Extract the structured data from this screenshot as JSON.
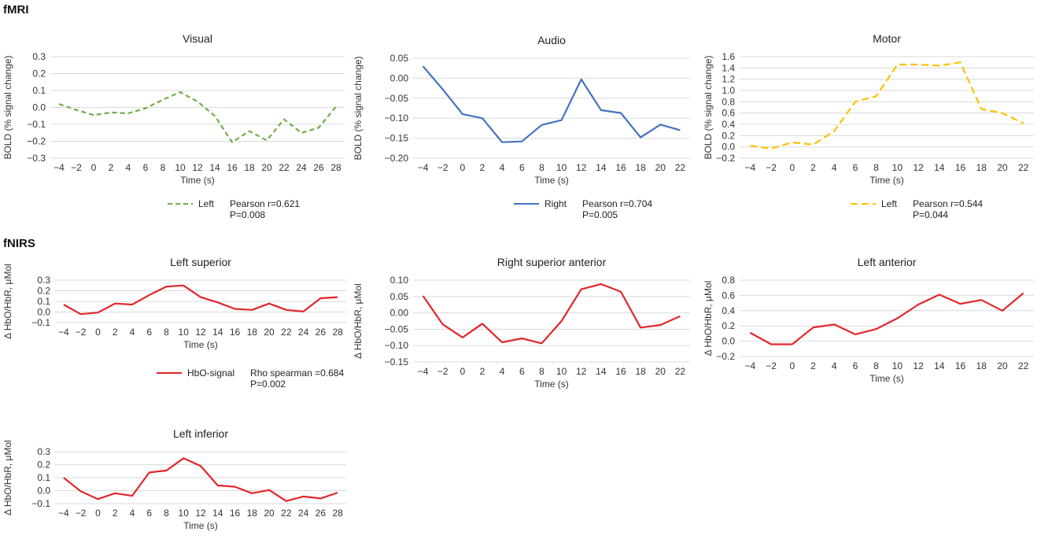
{
  "sections": {
    "fmri": "fMRI",
    "fnirs": "fNIRS"
  },
  "colors": {
    "green": "#70ad47",
    "blue": "#4472c4",
    "yellow": "#ffc000",
    "red": "#e3262c",
    "grid": "#d9d9d9",
    "axis": "#bfbfbf"
  },
  "legends": {
    "visual": {
      "label": "Left",
      "stat1": "Pearson r=0.621",
      "stat2": "P=0.008"
    },
    "audio": {
      "label": "Right",
      "stat1": "Pearson r=0.704",
      "stat2": "P=0.005"
    },
    "motor": {
      "label": "Left",
      "stat1": "Pearson r=0.544",
      "stat2": "P=0.044"
    },
    "fnirs": {
      "label": "HbO-signal",
      "stat1": "Rho spearman =0.684",
      "stat2": "P=0.002"
    }
  },
  "chart_data": [
    {
      "type": "line",
      "title": "Visual",
      "xlabel": "Time (s)",
      "ylabel": "BOLD (% signal change)",
      "x": [
        -4,
        -2,
        0,
        2,
        4,
        6,
        8,
        10,
        12,
        14,
        16,
        18,
        20,
        22,
        24,
        26,
        28
      ],
      "xticks": [
        "−4",
        "−2",
        "0",
        "2",
        "4",
        "6",
        "8",
        "10",
        "12",
        "14",
        "16",
        "18",
        "20",
        "22",
        "24",
        "26",
        "28"
      ],
      "ylim": [
        -0.3,
        0.3
      ],
      "yticks": [
        "−0.3",
        "−0.2",
        "−0.1",
        "0.0",
        "0.1",
        "0.2",
        "0.3"
      ],
      "ystep": 0.1,
      "grid": true,
      "series": [
        {
          "name": "Left",
          "color": "#70ad47",
          "dash": "6,4",
          "values": [
            0.02,
            -0.015,
            -0.045,
            -0.03,
            -0.035,
            -0.005,
            0.045,
            0.09,
            0.035,
            -0.05,
            -0.205,
            -0.14,
            -0.195,
            -0.07,
            -0.15,
            -0.12,
            0.005
          ]
        }
      ]
    },
    {
      "type": "line",
      "title": "Audio",
      "xlabel": "Time (s)",
      "ylabel": "BOLD (% signal change)",
      "x": [
        -4,
        -2,
        0,
        2,
        4,
        6,
        8,
        10,
        12,
        14,
        16,
        18,
        20,
        22
      ],
      "xticks": [
        "−4",
        "−2",
        "0",
        "2",
        "4",
        "6",
        "8",
        "10",
        "12",
        "14",
        "16",
        "18",
        "20",
        "22"
      ],
      "ylim": [
        -0.2,
        0.05
      ],
      "yticks": [
        "−0.20",
        "−0.15",
        "−0.10",
        "−0.05",
        "0.00",
        "0.05"
      ],
      "ystep": 0.05,
      "grid": true,
      "series": [
        {
          "name": "Right",
          "color": "#4472c4",
          "dash": "",
          "values": [
            0.03,
            -0.028,
            -0.09,
            -0.1,
            -0.16,
            -0.158,
            -0.117,
            -0.105,
            -0.003,
            -0.08,
            -0.087,
            -0.148,
            -0.116,
            -0.13
          ]
        }
      ]
    },
    {
      "type": "line",
      "title": "Motor",
      "xlabel": "Time (s)",
      "ylabel": "BOLD (% signal change)",
      "x": [
        -4,
        -2,
        0,
        2,
        4,
        6,
        8,
        10,
        12,
        14,
        16,
        18,
        20,
        22
      ],
      "xticks": [
        "−4",
        "−2",
        "0",
        "2",
        "4",
        "6",
        "8",
        "10",
        "12",
        "14",
        "16",
        "18",
        "20",
        "22"
      ],
      "ylim": [
        -0.2,
        1.6
      ],
      "yticks": [
        "−0.2",
        "0.0",
        "0.2",
        "0.4",
        "0.6",
        "0.8",
        "1.0",
        "1.2",
        "1.4",
        "1.6"
      ],
      "ystep": 0.2,
      "grid": true,
      "series": [
        {
          "name": "Left",
          "color": "#ffc000",
          "dash": "9,5",
          "values": [
            0.02,
            -0.03,
            0.08,
            0.04,
            0.28,
            0.8,
            0.9,
            1.46,
            1.46,
            1.44,
            1.5,
            0.67,
            0.6,
            0.42
          ]
        }
      ]
    },
    {
      "type": "line",
      "title": "Left superior",
      "xlabel": "Time (s)",
      "ylabel": "Δ HbO/HbR, μMol",
      "x": [
        -4,
        -2,
        0,
        2,
        4,
        6,
        8,
        10,
        12,
        14,
        16,
        18,
        20,
        22,
        24,
        26,
        28
      ],
      "xticks": [
        "−4",
        "−2",
        "0",
        "2",
        "4",
        "6",
        "8",
        "10",
        "12",
        "14",
        "16",
        "18",
        "20",
        "22",
        "24",
        "26",
        "28"
      ],
      "ylim": [
        -0.1,
        0.3
      ],
      "yticks": [
        "−0.1",
        "0.0",
        "0.1",
        "0.2",
        "0.3"
      ],
      "ystep": 0.1,
      "grid": true,
      "series": [
        {
          "name": "HbO-signal",
          "color": "#e3262c",
          "dash": "",
          "values": [
            0.07,
            -0.02,
            -0.005,
            0.08,
            0.07,
            0.16,
            0.24,
            0.25,
            0.14,
            0.09,
            0.03,
            0.02,
            0.08,
            0.02,
            0.005,
            0.13,
            0.14
          ]
        }
      ]
    },
    {
      "type": "line",
      "title": "Right superior anterior",
      "xlabel": "Time (s)",
      "ylabel": "Δ HbO/HbR, μMol",
      "x": [
        -4,
        -2,
        0,
        2,
        4,
        6,
        8,
        10,
        12,
        14,
        16,
        18,
        20,
        22
      ],
      "xticks": [
        "−4",
        "−2",
        "0",
        "2",
        "4",
        "6",
        "8",
        "10",
        "12",
        "14",
        "16",
        "18",
        "20",
        "22"
      ],
      "ylim": [
        -0.15,
        0.1
      ],
      "yticks": [
        "−0.15",
        "−0.10",
        "−0.05",
        "0.00",
        "0.05",
        "0.10"
      ],
      "ystep": 0.05,
      "grid": true,
      "series": [
        {
          "name": "HbO-signal",
          "color": "#e3262c",
          "dash": "",
          "values": [
            0.052,
            -0.035,
            -0.075,
            -0.033,
            -0.09,
            -0.078,
            -0.093,
            -0.025,
            0.072,
            0.088,
            0.065,
            -0.045,
            -0.037,
            -0.01
          ]
        }
      ]
    },
    {
      "type": "line",
      "title": "Left anterior",
      "xlabel": "Time (s)",
      "ylabel": "Δ HbO/HbR, μMol",
      "x": [
        -4,
        -2,
        0,
        2,
        4,
        6,
        8,
        10,
        12,
        14,
        16,
        18,
        20,
        22
      ],
      "xticks": [
        "−4",
        "−2",
        "0",
        "2",
        "4",
        "6",
        "8",
        "10",
        "12",
        "14",
        "16",
        "18",
        "20",
        "22"
      ],
      "ylim": [
        -0.2,
        0.8
      ],
      "yticks": [
        "−0.2",
        "0.0",
        "0.2",
        "0.4",
        "0.6",
        "0.8"
      ],
      "ystep": 0.2,
      "grid": true,
      "series": [
        {
          "name": "HbO-signal",
          "color": "#e3262c",
          "dash": "",
          "values": [
            0.11,
            -0.04,
            -0.04,
            0.18,
            0.22,
            0.09,
            0.16,
            0.3,
            0.48,
            0.61,
            0.49,
            0.54,
            0.4,
            0.63
          ]
        }
      ]
    },
    {
      "type": "line",
      "title": "Left inferior",
      "xlabel": "Time (s)",
      "ylabel": "Δ HbO/HbR, μMol",
      "x": [
        -4,
        -2,
        0,
        2,
        4,
        6,
        8,
        10,
        12,
        14,
        16,
        18,
        20,
        22,
        24,
        26,
        28
      ],
      "xticks": [
        "−4",
        "−2",
        "0",
        "2",
        "4",
        "6",
        "8",
        "10",
        "12",
        "14",
        "16",
        "18",
        "20",
        "22",
        "24",
        "26",
        "28"
      ],
      "ylim": [
        -0.1,
        0.3
      ],
      "yticks": [
        "−0.1",
        "0.0",
        "0.1",
        "0.2",
        "0.3"
      ],
      "ystep": 0.1,
      "grid": true,
      "series": [
        {
          "name": "HbO-signal",
          "color": "#e3262c",
          "dash": "",
          "values": [
            0.1,
            -0.005,
            -0.065,
            -0.02,
            -0.04,
            0.14,
            0.155,
            0.25,
            0.19,
            0.04,
            0.03,
            -0.02,
            0.005,
            -0.08,
            -0.045,
            -0.06,
            -0.015
          ]
        }
      ]
    }
  ]
}
